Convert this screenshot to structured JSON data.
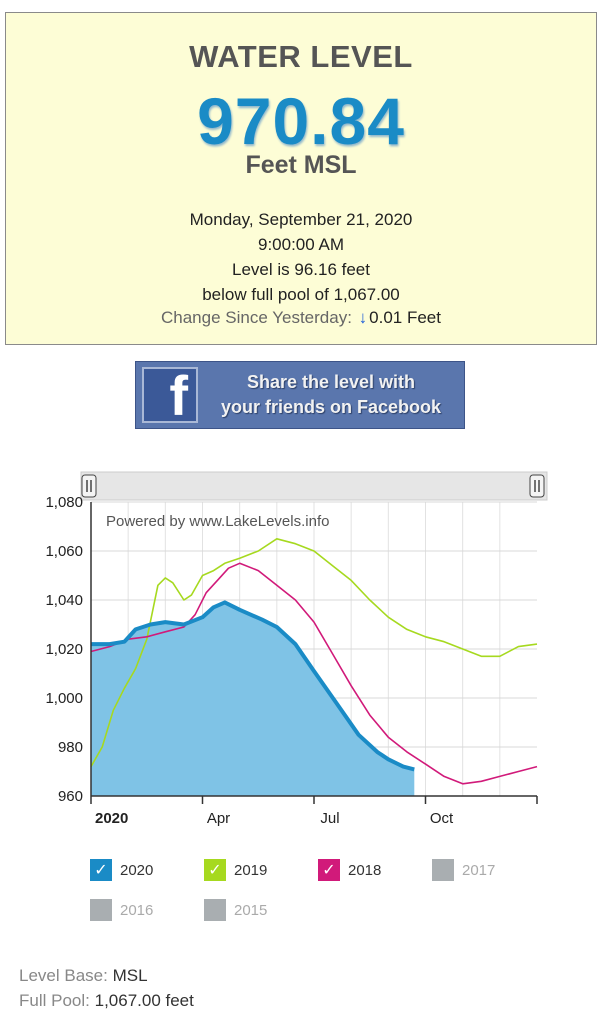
{
  "level_card": {
    "title": "WATER LEVEL",
    "value": "970.84",
    "unit": "Feet MSL",
    "date": "Monday, September 21, 2020",
    "time": "9:00:00 AM",
    "level_line": "Level is 96.16 feet",
    "pool_line": "below full pool of 1,067.00",
    "change_label": "Change Since Yesterday:",
    "change_arrow": "↓",
    "change_value": "0.01 Feet"
  },
  "share_button": {
    "icon": "facebook-icon",
    "line1": "Share the level with",
    "line2": "your friends on Facebook",
    "color": "#5a76ad"
  },
  "chart_data": {
    "type": "area",
    "watermark": "Powered by www.LakeLevels.info",
    "x_tick_labels": [
      "2020",
      "Apr",
      "Jul",
      "Oct"
    ],
    "y_tick_labels": [
      "1,080",
      "1,060",
      "1,040",
      "1,020",
      "1,000",
      "980",
      "960"
    ],
    "ylim": [
      960,
      1080
    ],
    "y_ticks": [
      960,
      980,
      1000,
      1020,
      1040,
      1060,
      1080
    ],
    "x_tick_months": [
      0,
      3,
      6,
      9
    ],
    "x_range_months": [
      0,
      12
    ],
    "grid": true,
    "series": [
      {
        "name": "2020",
        "color": "#1a8bc6",
        "fill": "#7fc3e6",
        "x": [
          0,
          0.5,
          0.9,
          1.2,
          1.6,
          2.0,
          2.5,
          3.0,
          3.3,
          3.6,
          4.0,
          4.6,
          5.0,
          5.5,
          6.0,
          6.6,
          7.2,
          7.7,
          8.0,
          8.4,
          8.7
        ],
        "y": [
          1022,
          1022,
          1023,
          1028,
          1030,
          1031,
          1030,
          1033,
          1037,
          1039,
          1036,
          1032,
          1029,
          1022,
          1011,
          998,
          985,
          978,
          975,
          972,
          970.84
        ]
      },
      {
        "name": "2019",
        "color": "#a6d91f",
        "x": [
          0,
          0.3,
          0.6,
          0.9,
          1.2,
          1.5,
          1.8,
          2.0,
          2.2,
          2.5,
          2.7,
          3.0,
          3.3,
          3.6,
          4.0,
          4.5,
          5.0,
          5.5,
          6.0,
          6.5,
          7.0,
          7.5,
          8.0,
          8.5,
          9.0,
          9.5,
          10.0,
          10.5,
          11.0,
          11.5,
          12.0
        ],
        "y": [
          972,
          980,
          995,
          1004,
          1012,
          1024,
          1046,
          1049,
          1047,
          1040,
          1042,
          1050,
          1052,
          1055,
          1057,
          1060,
          1065,
          1063,
          1060,
          1054,
          1048,
          1040,
          1033,
          1028,
          1025,
          1023,
          1020,
          1017,
          1017,
          1021,
          1022
        ]
      },
      {
        "name": "2018",
        "color": "#d11a7a",
        "x": [
          0,
          0.5,
          1.0,
          1.5,
          2.0,
          2.5,
          2.8,
          3.1,
          3.4,
          3.7,
          4.0,
          4.5,
          5.0,
          5.5,
          6.0,
          6.5,
          7.0,
          7.5,
          8.0,
          8.5,
          9.0,
          9.5,
          10.0,
          10.5,
          11.0,
          11.5,
          12.0
        ],
        "y": [
          1019,
          1021,
          1024,
          1025,
          1027,
          1029,
          1034,
          1043,
          1048,
          1053,
          1055,
          1052,
          1046,
          1040,
          1031,
          1018,
          1005,
          993,
          984,
          978,
          973,
          968,
          965,
          966,
          968,
          970,
          972
        ]
      }
    ]
  },
  "legend": {
    "items": [
      {
        "label": "2020",
        "color": "#1a8bc6",
        "enabled": true
      },
      {
        "label": "2019",
        "color": "#a6d91f",
        "enabled": true
      },
      {
        "label": "2018",
        "color": "#d11a7a",
        "enabled": true
      },
      {
        "label": "2017",
        "color": "#a9aeb1",
        "enabled": false
      },
      {
        "label": "2016",
        "color": "#a9aeb1",
        "enabled": false
      },
      {
        "label": "2015",
        "color": "#a9aeb1",
        "enabled": false
      }
    ],
    "check_glyph": "✓"
  },
  "footer": {
    "base_label": "Level Base:",
    "base_value": "MSL",
    "pool_label": "Full Pool:",
    "pool_value": "1,067.00 feet"
  }
}
